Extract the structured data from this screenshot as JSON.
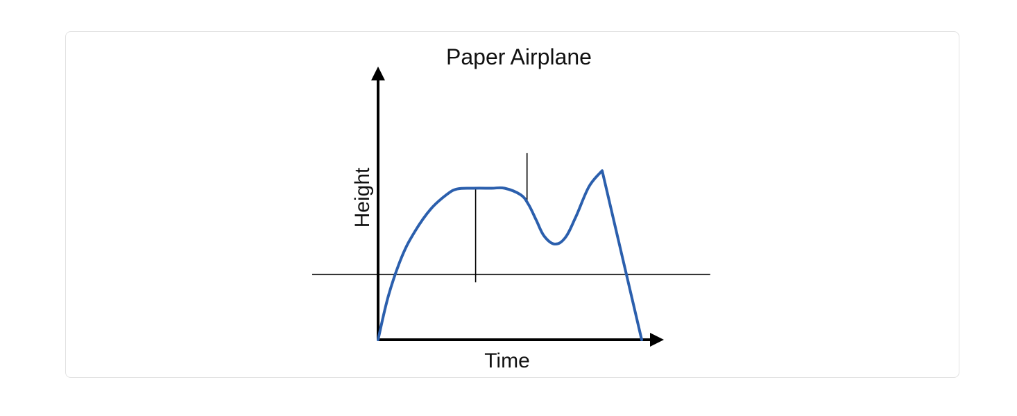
{
  "chart_data": {
    "type": "line",
    "title": "Paper Airplane",
    "xlabel": "Time",
    "ylabel": "Height",
    "grid": false,
    "ticks": false,
    "xlim": [
      0,
      100
    ],
    "ylim": [
      0,
      100
    ],
    "series": [
      {
        "color": "#2b5fad",
        "x": [
          0,
          4,
          9,
          14,
          20,
          26,
          30,
          36,
          43,
          48,
          54,
          57,
          60,
          63,
          67,
          71,
          75,
          80,
          85,
          100
        ],
        "y": [
          0,
          28,
          52,
          68,
          82,
          91,
          94.5,
          95,
          95,
          95,
          91,
          85,
          75,
          65,
          60,
          64,
          77,
          96,
          106,
          0
        ]
      }
    ],
    "reference_lines": {
      "horizontal_y": 41,
      "horizontal_x_range": [
        -25,
        126
      ],
      "vertical_1_x": 37,
      "vertical_1_y_range": [
        36,
        95
      ],
      "vertical_2_x": 56.5,
      "vertical_2_y_range": [
        87,
        117
      ]
    },
    "colors": {
      "line": "#2b5fad",
      "axes": "#000000",
      "reference": "#000000",
      "card_border": "#e2e2e2"
    }
  }
}
